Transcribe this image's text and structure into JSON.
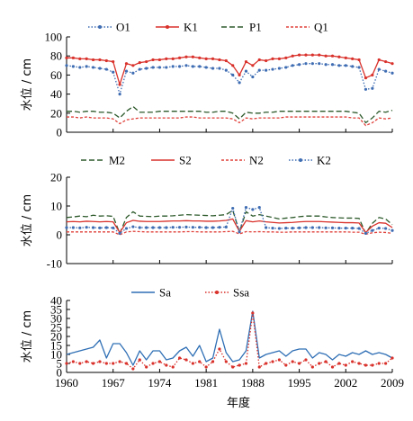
{
  "chart_data": [
    {
      "type": "line",
      "ylabel": "水位 / cm",
      "ylim": [
        0,
        100
      ],
      "yticks": [
        "0",
        "20",
        "40",
        "60",
        "80",
        "100"
      ],
      "x": [
        1960,
        1961,
        1962,
        1963,
        1964,
        1965,
        1966,
        1967,
        1968,
        1969,
        1970,
        1971,
        1972,
        1973,
        1974,
        1975,
        1976,
        1977,
        1978,
        1979,
        1980,
        1981,
        1982,
        1983,
        1984,
        1985,
        1986,
        1987,
        1988,
        1989,
        1990,
        1991,
        1992,
        1993,
        1994,
        1995,
        1996,
        1997,
        1998,
        1999,
        2000,
        2001,
        2002,
        2003,
        2004,
        2005,
        2006,
        2007,
        2008,
        2009
      ],
      "series": [
        {
          "name": "O1",
          "color": "#3f6db3",
          "dash": "1.5,2",
          "marker": "dot",
          "values": [
            70,
            69,
            68,
            69,
            68,
            67,
            66,
            63,
            40,
            64,
            62,
            66,
            67,
            68,
            68,
            68,
            69,
            69,
            70,
            69,
            69,
            68,
            67,
            67,
            65,
            60,
            52,
            64,
            58,
            65,
            65,
            66,
            67,
            68,
            70,
            71,
            72,
            72,
            72,
            71,
            71,
            70,
            70,
            69,
            68,
            45,
            46,
            66,
            64,
            62
          ]
        },
        {
          "name": "K1",
          "color": "#d9312b",
          "dash": "none",
          "marker": "dot",
          "values": [
            78,
            78,
            77,
            77,
            76,
            76,
            75,
            74,
            50,
            72,
            70,
            73,
            74,
            76,
            76,
            77,
            77,
            78,
            79,
            79,
            78,
            77,
            77,
            76,
            75,
            70,
            60,
            74,
            70,
            76,
            75,
            77,
            77,
            78,
            80,
            81,
            81,
            81,
            81,
            80,
            80,
            79,
            78,
            77,
            76,
            57,
            60,
            76,
            74,
            72
          ]
        },
        {
          "name": "P1",
          "color": "#2d5a2b",
          "dash": "6,3",
          "marker": "none",
          "values": [
            22,
            22,
            21,
            22,
            22,
            21,
            21,
            20,
            15,
            22,
            27,
            21,
            21,
            21,
            22,
            22,
            22,
            22,
            22,
            22,
            22,
            21,
            21,
            22,
            22,
            20,
            14,
            21,
            20,
            20,
            21,
            21,
            22,
            22,
            22,
            22,
            22,
            22,
            22,
            22,
            22,
            22,
            22,
            21,
            20,
            10,
            15,
            22,
            21,
            23
          ]
        },
        {
          "name": "Q1",
          "color": "#e0403a",
          "dash": "3,2",
          "marker": "none",
          "values": [
            16,
            16,
            15,
            16,
            15,
            15,
            15,
            14,
            9,
            13,
            14,
            15,
            15,
            15,
            15,
            15,
            15,
            15,
            16,
            16,
            15,
            15,
            15,
            15,
            15,
            14,
            10,
            15,
            14,
            15,
            15,
            15,
            15,
            16,
            16,
            16,
            16,
            16,
            16,
            16,
            16,
            16,
            16,
            15,
            15,
            7,
            10,
            15,
            14,
            15
          ]
        }
      ]
    },
    {
      "type": "line",
      "ylabel": "水位 / cm",
      "ylim": [
        -10,
        20
      ],
      "yticks": [
        "-10",
        "0",
        "10",
        "20"
      ],
      "x": [
        1960,
        1961,
        1962,
        1963,
        1964,
        1965,
        1966,
        1967,
        1968,
        1969,
        1970,
        1971,
        1972,
        1973,
        1974,
        1975,
        1976,
        1977,
        1978,
        1979,
        1980,
        1981,
        1982,
        1983,
        1984,
        1985,
        1986,
        1987,
        1988,
        1989,
        1990,
        1991,
        1992,
        1993,
        1994,
        1995,
        1996,
        1997,
        1998,
        1999,
        2000,
        2001,
        2002,
        2003,
        2004,
        2005,
        2006,
        2007,
        2008,
        2009
      ],
      "series": [
        {
          "name": "M2",
          "color": "#2d5a2b",
          "dash": "6,3",
          "marker": "none",
          "values": [
            6,
            6.2,
            6.5,
            6.3,
            6.8,
            6.5,
            6.6,
            6.4,
            0.5,
            6,
            8,
            6.5,
            6.4,
            6.3,
            6.5,
            6.5,
            6.6,
            6.8,
            7,
            6.9,
            6.8,
            6.7,
            6.6,
            6.8,
            7,
            8.5,
            1,
            8,
            6.5,
            7,
            6.5,
            6,
            5.5,
            5.8,
            6,
            6.3,
            6.5,
            6.5,
            6.5,
            6.2,
            6,
            5.9,
            5.8,
            5.8,
            5.7,
            0.5,
            4,
            6,
            5.5,
            3.5
          ]
        },
        {
          "name": "S2",
          "color": "#d9312b",
          "dash": "none",
          "marker": "none",
          "values": [
            4.5,
            4.6,
            4.5,
            4.7,
            4.6,
            4.5,
            4.6,
            4.5,
            0.8,
            4.2,
            5,
            4.7,
            4.6,
            4.6,
            4.6,
            4.7,
            4.8,
            4.8,
            4.9,
            4.8,
            4.8,
            4.7,
            4.7,
            4.8,
            5,
            5.5,
            1.2,
            4.9,
            4.5,
            4.8,
            4.5,
            4.3,
            4.1,
            4.2,
            4.3,
            4.5,
            4.6,
            4.6,
            4.6,
            4.5,
            4.4,
            4.3,
            4.2,
            4.2,
            4.1,
            0.8,
            3,
            4.2,
            4,
            2.5
          ]
        },
        {
          "name": "N2",
          "color": "#e0403a",
          "dash": "3,2",
          "marker": "none",
          "values": [
            1,
            1,
            1,
            1,
            1,
            1,
            1,
            1,
            0,
            1,
            1.2,
            1.1,
            1,
            1,
            1,
            1,
            1,
            1,
            1.1,
            1.1,
            1,
            1,
            1,
            1,
            1.1,
            1.2,
            0.3,
            1.1,
            1,
            1.1,
            1,
            1,
            0.9,
            0.9,
            1,
            1,
            1,
            1,
            1,
            1,
            1,
            1,
            1,
            0.9,
            0.9,
            0.2,
            0.7,
            0.9,
            0.8,
            0.5
          ]
        },
        {
          "name": "K2",
          "color": "#3f6db3",
          "dash": "1.5,2",
          "marker": "dot",
          "values": [
            2.5,
            2.5,
            2.4,
            2.6,
            2.5,
            2.4,
            2.5,
            2.4,
            0.5,
            2.2,
            2.8,
            2.5,
            2.5,
            2.5,
            2.5,
            2.5,
            2.6,
            2.6,
            2.7,
            2.6,
            2.6,
            2.5,
            2.5,
            2.6,
            2.7,
            9.2,
            1,
            9.5,
            8.8,
            9.5,
            2.5,
            2.3,
            2.2,
            2.3,
            2.3,
            2.4,
            2.5,
            2.5,
            2.5,
            2.4,
            2.4,
            2.3,
            2.3,
            2.3,
            2.2,
            0.5,
            1.5,
            2.3,
            2.2,
            1.5
          ]
        }
      ]
    },
    {
      "type": "line",
      "ylabel": "水位 / cm",
      "xlabel": "年度",
      "ylim": [
        0,
        40
      ],
      "yticks": [
        "0",
        "5",
        "10",
        "15",
        "20",
        "25",
        "30",
        "35",
        "40"
      ],
      "xticks": [
        "1960",
        "1967",
        "1974",
        "1981",
        "1988",
        "1995",
        "2002",
        "2009"
      ],
      "x": [
        1960,
        1961,
        1962,
        1963,
        1964,
        1965,
        1966,
        1967,
        1968,
        1969,
        1970,
        1971,
        1972,
        1973,
        1974,
        1975,
        1976,
        1977,
        1978,
        1979,
        1980,
        1981,
        1982,
        1983,
        1984,
        1985,
        1986,
        1987,
        1988,
        1989,
        1990,
        1991,
        1992,
        1993,
        1994,
        1995,
        1996,
        1997,
        1998,
        1999,
        2000,
        2001,
        2002,
        2003,
        2004,
        2005,
        2006,
        2007,
        2008,
        2009
      ],
      "series": [
        {
          "name": "Sa",
          "color": "#2f6fb5",
          "dash": "none",
          "marker": "none",
          "values": [
            10,
            11,
            12,
            13,
            14,
            18,
            8,
            16,
            16,
            11,
            4,
            12,
            7,
            12,
            12,
            7,
            8,
            12,
            14,
            9,
            15,
            6,
            8,
            24,
            11,
            6,
            7,
            12,
            34,
            8,
            10,
            11,
            12,
            9,
            12,
            13,
            13,
            8,
            11,
            10,
            7,
            10,
            9,
            11,
            10,
            12,
            10,
            11,
            10,
            8
          ]
        },
        {
          "name": "Ssa",
          "color": "#d9312b",
          "dash": "1.5,2",
          "marker": "dot",
          "values": [
            5,
            6,
            5,
            6,
            5,
            6,
            5,
            5,
            6,
            5,
            2,
            7,
            3,
            5,
            6,
            4,
            3,
            8,
            7,
            5,
            6,
            3,
            6,
            13,
            6,
            3,
            4,
            5,
            33,
            3,
            5,
            6,
            7,
            4,
            6,
            5,
            7,
            3,
            5,
            6,
            3,
            5,
            4,
            6,
            5,
            4,
            4,
            5,
            5,
            8
          ]
        }
      ]
    }
  ]
}
